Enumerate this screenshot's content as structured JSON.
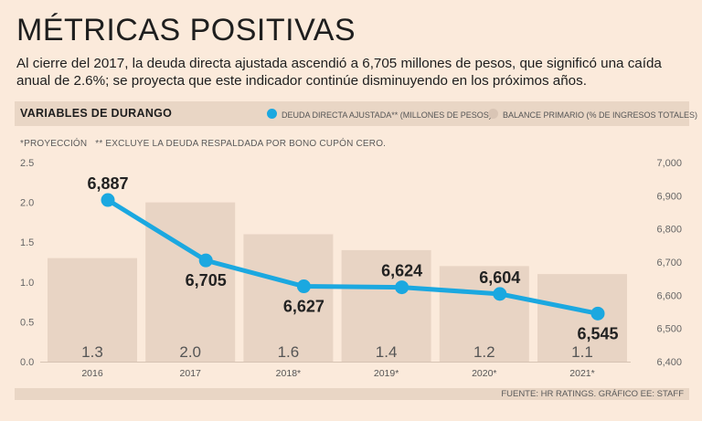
{
  "header": {
    "title": "MÉTRICAS POSITIVAS",
    "subtitle": "Al cierre del 2017, la deuda directa ajustada ascendió a 6,705 millones de pesos, que significó una caída anual de 2.6%; se proyecta que este indicador continúe disminuyendo en los próximos años."
  },
  "band": {
    "label": "VARIABLES DE DURANGO",
    "legend_line": "DEUDA DIRECTA AJUSTADA** (MILLONES DE PESOS)",
    "legend_bar": "BALANCE PRIMARIO (% DE INGRESOS TOTALES)"
  },
  "notes": {
    "projection": "*PROYECCIÓN",
    "exclusion": "** EXCLUYE LA DEUDA RESPALDADA POR BONO CUPÓN CERO."
  },
  "footer": {
    "source": "FUENTE: HR RATINGS. GRÁFICO EE: STAFF"
  },
  "colors": {
    "line": "#1ba8e0",
    "bar": "#e8d4c4",
    "background": "#fbeadb",
    "band": "#e9d6c5"
  },
  "chart_data": {
    "type": "bar",
    "categories": [
      "2016",
      "2017",
      "2018*",
      "2019*",
      "2020*",
      "2021*"
    ],
    "series": [
      {
        "name": "BALANCE PRIMARIO (% DE INGRESOS TOTALES)",
        "type": "bar",
        "axis": "left",
        "values": [
          1.3,
          2.0,
          1.6,
          1.4,
          1.2,
          1.1
        ],
        "labels": [
          "1.3",
          "2.0",
          "1.6",
          "1.4",
          "1.2",
          "1.1"
        ]
      },
      {
        "name": "DEUDA DIRECTA AJUSTADA** (MILLONES DE PESOS)",
        "type": "line",
        "axis": "right",
        "values": [
          6887,
          6705,
          6627,
          6624,
          6604,
          6545
        ],
        "labels": [
          "6,887",
          "6,705",
          "6,627",
          "6,624",
          "6,604",
          "6,545"
        ]
      }
    ],
    "y_left": {
      "range": [
        0,
        2.5
      ],
      "ticks": [
        "0.0",
        "0.5",
        "1.0",
        "1.5",
        "2.0",
        "2.5"
      ]
    },
    "y_right": {
      "range": [
        6400,
        7000
      ],
      "ticks": [
        "6,400",
        "6,500",
        "6,600",
        "6,700",
        "6,800",
        "6,900",
        "7,000"
      ]
    },
    "label_placement": [
      "above",
      "below",
      "below",
      "above",
      "above",
      "below"
    ]
  }
}
